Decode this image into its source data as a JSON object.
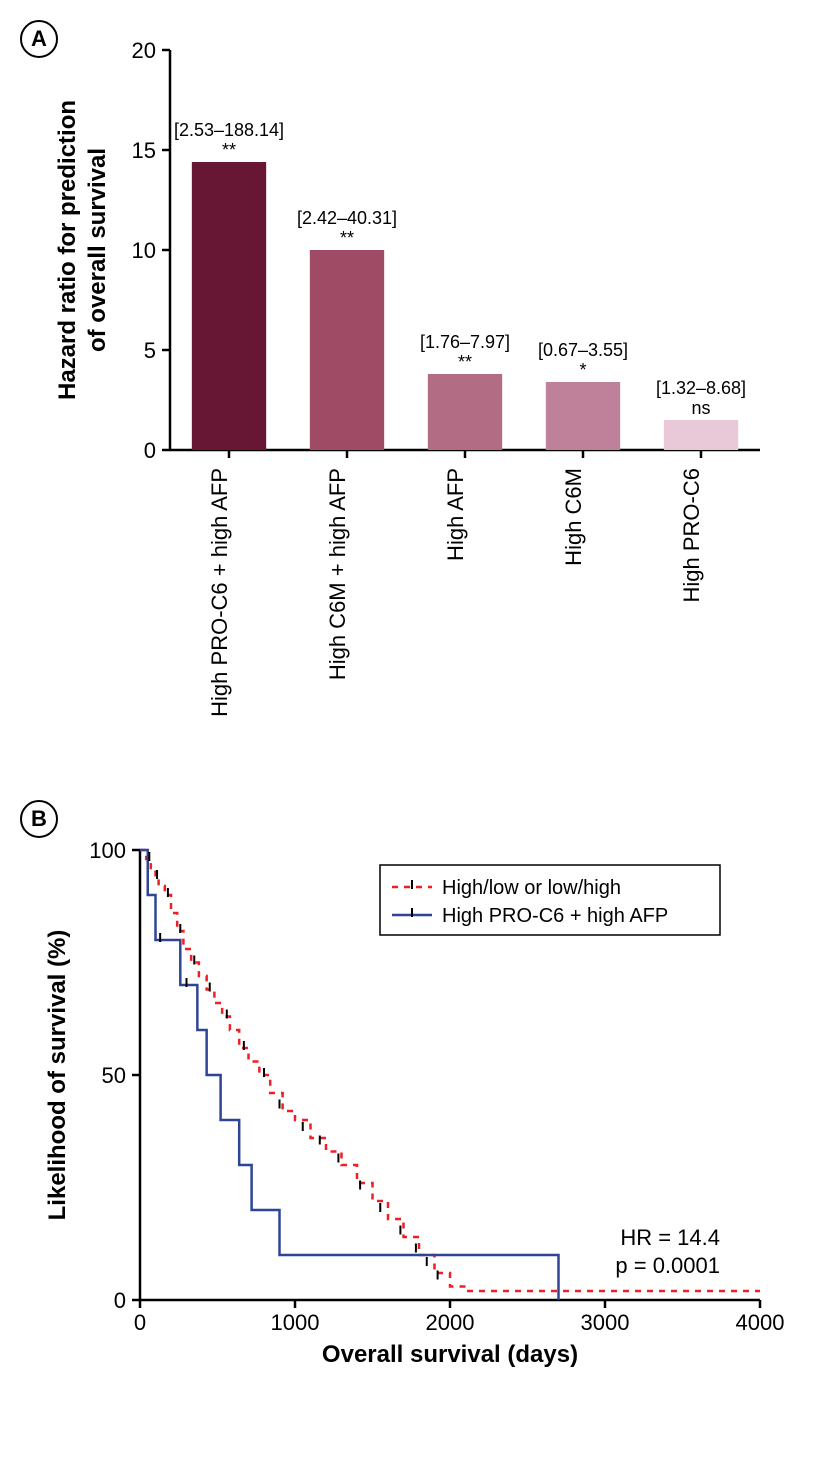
{
  "panelA": {
    "label": "A",
    "type": "bar",
    "ylabel_line1": "Hazard ratio for prediction",
    "ylabel_line2": "of overall survival",
    "ylim": [
      0,
      20
    ],
    "ytick_step": 5,
    "yticks": [
      0,
      5,
      10,
      15,
      20
    ],
    "categories": [
      "High PRO-C6 + high AFP",
      "High C6M + high AFP",
      "High AFP",
      "High C6M",
      "High PRO-C6"
    ],
    "values": [
      14.4,
      10.0,
      3.8,
      3.4,
      1.5
    ],
    "ci_labels": [
      "[2.53–188.14]",
      "[2.42–40.31]",
      "[1.76–7.97]",
      "[0.67–3.55]",
      "[1.32–8.68]"
    ],
    "sig_labels": [
      "**",
      "**",
      "**",
      "*",
      "ns"
    ],
    "bar_colors": [
      "#671633",
      "#a04b65",
      "#b26c84",
      "#bf809a",
      "#e9c9d8"
    ],
    "axis_color": "#000000",
    "tick_fontsize": 22,
    "label_fontsize": 24,
    "bar_width": 0.63,
    "background_color": "#ffffff"
  },
  "panelB": {
    "label": "B",
    "type": "survival",
    "xlabel": "Overall survival (days)",
    "ylabel": "Likelihood of survival (%)",
    "xlim": [
      0,
      4000
    ],
    "ylim": [
      0,
      100
    ],
    "xtick_step": 1000,
    "ytick_step": 50,
    "xticks": [
      0,
      1000,
      2000,
      3000,
      4000
    ],
    "yticks": [
      0,
      50,
      100
    ],
    "legend": {
      "items": [
        {
          "label": "High/low or low/high",
          "color": "#ee1f25",
          "dash": "6,6"
        },
        {
          "label": "High PRO-C6 + high AFP",
          "color": "#2e4596",
          "dash": ""
        }
      ]
    },
    "stats_lines": [
      "HR = 14.4",
      "p = 0.0001"
    ],
    "series_red": {
      "color": "#ee1f25",
      "dash": "6,6",
      "points": [
        [
          0,
          100
        ],
        [
          40,
          98
        ],
        [
          70,
          96
        ],
        [
          100,
          94
        ],
        [
          120,
          92
        ],
        [
          160,
          90
        ],
        [
          200,
          86
        ],
        [
          240,
          82
        ],
        [
          280,
          78
        ],
        [
          330,
          75
        ],
        [
          380,
          72
        ],
        [
          430,
          69
        ],
        [
          480,
          66
        ],
        [
          530,
          63
        ],
        [
          580,
          60
        ],
        [
          640,
          56
        ],
        [
          700,
          53
        ],
        [
          770,
          50
        ],
        [
          840,
          46
        ],
        [
          920,
          42
        ],
        [
          1000,
          40
        ],
        [
          1100,
          36
        ],
        [
          1200,
          33
        ],
        [
          1300,
          30
        ],
        [
          1400,
          26
        ],
        [
          1500,
          22
        ],
        [
          1600,
          18
        ],
        [
          1700,
          14
        ],
        [
          1800,
          10
        ],
        [
          1900,
          6
        ],
        [
          2000,
          3
        ],
        [
          2100,
          2
        ],
        [
          4000,
          2
        ]
      ],
      "censors": [
        [
          60,
          98
        ],
        [
          110,
          94
        ],
        [
          180,
          90
        ],
        [
          260,
          82
        ],
        [
          350,
          75
        ],
        [
          450,
          69
        ],
        [
          560,
          63
        ],
        [
          670,
          56
        ],
        [
          800,
          50
        ],
        [
          900,
          43
        ],
        [
          1050,
          38
        ],
        [
          1160,
          35
        ],
        [
          1280,
          31
        ],
        [
          1420,
          25
        ],
        [
          1550,
          20
        ],
        [
          1680,
          15
        ],
        [
          1780,
          11
        ],
        [
          1850,
          8
        ],
        [
          1920,
          5
        ]
      ]
    },
    "series_blue": {
      "color": "#2e4596",
      "dash": "",
      "points": [
        [
          0,
          100
        ],
        [
          50,
          90
        ],
        [
          100,
          80
        ],
        [
          260,
          80
        ],
        [
          260,
          70
        ],
        [
          370,
          70
        ],
        [
          370,
          60
        ],
        [
          430,
          60
        ],
        [
          430,
          50
        ],
        [
          520,
          50
        ],
        [
          520,
          40
        ],
        [
          640,
          40
        ],
        [
          640,
          30
        ],
        [
          720,
          30
        ],
        [
          720,
          20
        ],
        [
          900,
          20
        ],
        [
          900,
          10
        ],
        [
          2700,
          10
        ],
        [
          2700,
          0
        ]
      ],
      "censors": [
        [
          130,
          80
        ],
        [
          300,
          70
        ]
      ]
    },
    "axis_color": "#000000",
    "tick_fontsize": 22,
    "label_fontsize": 24,
    "background_color": "#ffffff"
  }
}
